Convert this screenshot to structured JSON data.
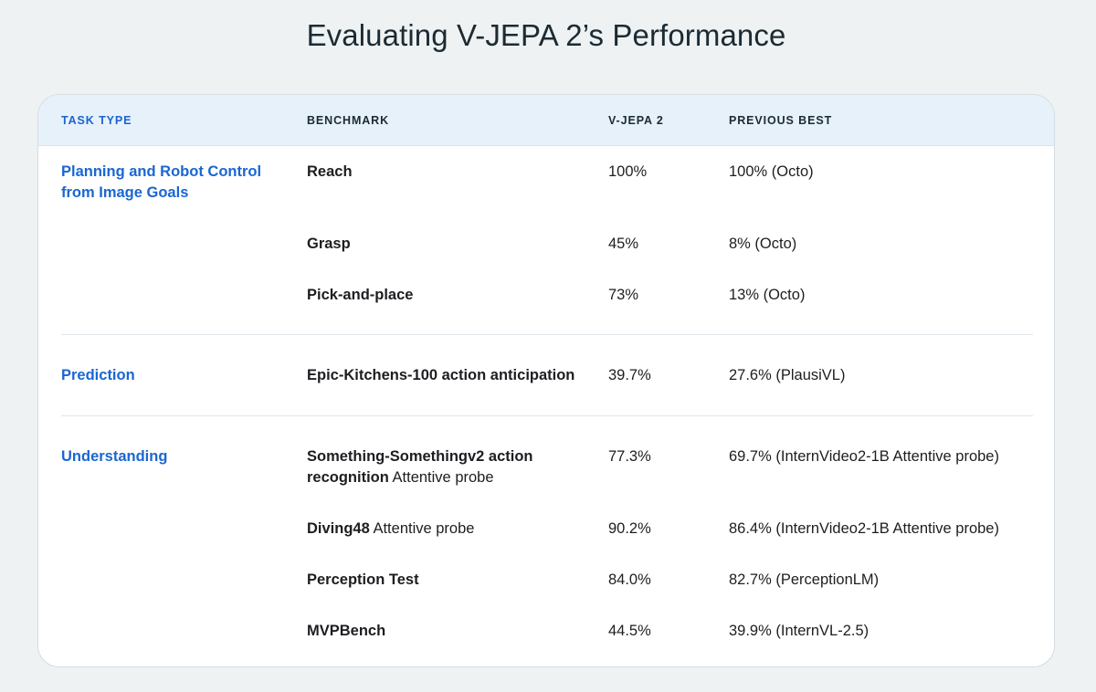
{
  "title": "Evaluating V-JEPA 2’s Performance",
  "headers": {
    "task_type": "TASK TYPE",
    "benchmark": "BENCHMARK",
    "vjepa2": "V-JEPA 2",
    "previous_best": "PREVIOUS BEST"
  },
  "groups": [
    {
      "task": "Planning and Robot Control from Image Goals",
      "rows": [
        {
          "benchmark": "Reach",
          "suffix": "",
          "vjepa2": "100%",
          "previous": "100% (Octo)"
        },
        {
          "benchmark": "Grasp",
          "suffix": "",
          "vjepa2": "45%",
          "previous": "8% (Octo)"
        },
        {
          "benchmark": "Pick-and-place",
          "suffix": "",
          "vjepa2": "73%",
          "previous": "13% (Octo)"
        }
      ]
    },
    {
      "task": "Prediction",
      "rows": [
        {
          "benchmark": "Epic-Kitchens-100 action anticipation",
          "suffix": "",
          "vjepa2": "39.7%",
          "previous": "27.6% (PlausiVL)"
        }
      ]
    },
    {
      "task": "Understanding",
      "rows": [
        {
          "benchmark": "Something-Somethingv2 action recognition",
          "suffix": "Attentive probe",
          "vjepa2": "77.3%",
          "previous": "69.7% (InternVideo2-1B Attentive probe)"
        },
        {
          "benchmark": "Diving48",
          "suffix": "Attentive probe",
          "vjepa2": "90.2%",
          "previous": "86.4% (InternVideo2-1B Attentive probe)"
        },
        {
          "benchmark": "Perception Test",
          "suffix": "",
          "vjepa2": "84.0%",
          "previous": "82.7% (PerceptionLM)"
        },
        {
          "benchmark": "MVPBench",
          "suffix": "",
          "vjepa2": "44.5%",
          "previous": "39.9% (InternVL-2.5)"
        }
      ]
    }
  ]
}
